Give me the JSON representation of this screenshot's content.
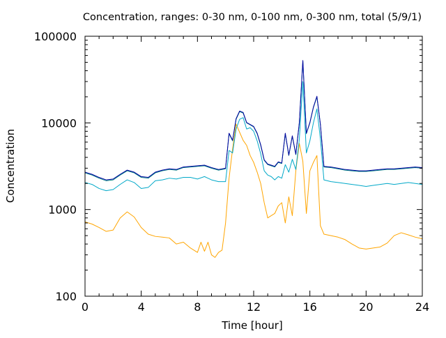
{
  "chart_data": {
    "type": "line",
    "title": "Concentration, ranges: 0-30 nm, 0-100 nm, 0-300 nm, total (5/9/1)",
    "xlabel": "Time [hour]",
    "ylabel": "Concentration",
    "xlim": [
      0,
      24
    ],
    "ylim": [
      100,
      100000
    ],
    "yscale": "log",
    "grid": false,
    "legend": "none",
    "x_ticks": [
      0,
      4,
      8,
      12,
      16,
      20,
      24
    ],
    "x_tick_labels": [
      "0",
      "4",
      "8",
      "12",
      "16",
      "20",
      "24"
    ],
    "y_ticks": [
      100,
      1000,
      10000,
      100000
    ],
    "y_tick_labels": [
      "100",
      "1000",
      "10000",
      "100000"
    ],
    "series": [
      {
        "color": "#ffa500",
        "x": [
          0,
          0.5,
          1,
          1.5,
          2,
          2.5,
          3,
          3.5,
          4,
          4.5,
          5,
          5.5,
          6,
          6.5,
          7,
          7.5,
          8,
          8.25,
          8.5,
          8.75,
          9,
          9.25,
          9.5,
          9.75,
          10,
          10.25,
          10.5,
          10.75,
          11,
          11.25,
          11.5,
          11.75,
          12,
          12.25,
          12.5,
          12.75,
          13,
          13.25,
          13.5,
          13.75,
          14,
          14.25,
          14.5,
          14.75,
          15,
          15.25,
          15.5,
          15.75,
          16,
          16.25,
          16.5,
          16.75,
          17,
          17.5,
          18,
          18.5,
          19,
          19.5,
          20,
          20.5,
          21,
          21.5,
          22,
          22.5,
          23,
          23.5,
          24
        ],
        "y": [
          720,
          680,
          620,
          560,
          580,
          800,
          940,
          820,
          620,
          520,
          490,
          480,
          470,
          400,
          420,
          360,
          320,
          420,
          330,
          420,
          300,
          280,
          320,
          340,
          700,
          2300,
          5000,
          9700,
          7800,
          6300,
          5500,
          4200,
          3500,
          2700,
          2000,
          1200,
          800,
          850,
          900,
          1100,
          1200,
          700,
          1400,
          850,
          2800,
          5800,
          3600,
          900,
          2800,
          3500,
          4200,
          650,
          520,
          500,
          480,
          450,
          400,
          360,
          350,
          360,
          370,
          410,
          500,
          540,
          510,
          480,
          460
        ]
      },
      {
        "color": "#00a8c8",
        "x": [
          0,
          0.5,
          1,
          1.5,
          2,
          2.5,
          3,
          3.5,
          4,
          4.5,
          5,
          5.5,
          6,
          6.5,
          7,
          7.5,
          8,
          8.5,
          9,
          9.5,
          10,
          10.25,
          10.5,
          10.75,
          11,
          11.25,
          11.5,
          11.75,
          12,
          12.25,
          12.5,
          12.75,
          13,
          13.25,
          13.5,
          13.75,
          14,
          14.25,
          14.5,
          14.75,
          15,
          15.25,
          15.5,
          15.75,
          16,
          16.25,
          16.5,
          16.75,
          17,
          17.5,
          18,
          18.5,
          19,
          19.5,
          20,
          20.5,
          21,
          21.5,
          22,
          22.5,
          23,
          23.5,
          24
        ],
        "y": [
          2050,
          1950,
          1750,
          1650,
          1700,
          1950,
          2200,
          2050,
          1750,
          1800,
          2150,
          2200,
          2300,
          2250,
          2350,
          2350,
          2250,
          2400,
          2200,
          2100,
          2100,
          4800,
          4500,
          8500,
          11000,
          11500,
          8500,
          8800,
          8000,
          6200,
          4400,
          2800,
          2500,
          2400,
          2200,
          2400,
          2300,
          3300,
          2700,
          3800,
          2900,
          6500,
          30000,
          4500,
          6200,
          10000,
          14500,
          6500,
          2200,
          2100,
          2050,
          2000,
          1950,
          1900,
          1850,
          1900,
          1950,
          2000,
          1950,
          2000,
          2050,
          2000,
          1950
        ]
      },
      {
        "color": "#008080",
        "x": [
          0,
          0.5,
          1,
          1.5,
          2,
          2.5,
          3,
          3.5,
          4,
          4.5,
          5,
          5.5,
          6,
          6.5,
          7,
          7.5,
          8,
          8.5,
          9,
          9.5,
          10,
          10.25,
          10.5,
          10.75,
          11,
          11.25,
          11.5,
          11.75,
          12,
          12.25,
          12.5,
          12.75,
          13,
          13.25,
          13.5,
          13.75,
          14,
          14.25,
          14.5,
          14.75,
          15,
          15.25,
          15.5,
          15.75,
          16,
          16.25,
          16.5,
          16.75,
          17,
          17.5,
          18,
          18.5,
          19,
          19.5,
          20,
          20.5,
          21,
          21.5,
          22,
          22.5,
          23,
          23.5,
          24
        ],
        "y": [
          2650,
          2500,
          2300,
          2150,
          2200,
          2500,
          2800,
          2650,
          2350,
          2300,
          2650,
          2800,
          2900,
          2850,
          3050,
          3100,
          3150,
          3200,
          3000,
          2850,
          2950,
          7500,
          6200,
          11000,
          13500,
          13000,
          10000,
          9500,
          9000,
          7500,
          5500,
          3700,
          3300,
          3200,
          3100,
          3500,
          3400,
          7500,
          4200,
          7000,
          4300,
          10000,
          52000,
          7500,
          10000,
          15000,
          20000,
          9500,
          3100,
          3050,
          2950,
          2850,
          2800,
          2750,
          2750,
          2800,
          2850,
          2900,
          2900,
          2950,
          3000,
          3050,
          3000
        ]
      },
      {
        "color": "#0000a0",
        "x": [
          0,
          0.5,
          1,
          1.5,
          2,
          2.5,
          3,
          3.5,
          4,
          4.5,
          5,
          5.5,
          6,
          6.5,
          7,
          7.5,
          8,
          8.5,
          9,
          9.5,
          10,
          10.25,
          10.5,
          10.75,
          11,
          11.25,
          11.5,
          11.75,
          12,
          12.25,
          12.5,
          12.75,
          13,
          13.25,
          13.5,
          13.75,
          14,
          14.25,
          14.5,
          14.75,
          15,
          15.25,
          15.5,
          15.75,
          16,
          16.25,
          16.5,
          16.75,
          17,
          17.5,
          18,
          18.5,
          19,
          19.5,
          20,
          20.5,
          21,
          21.5,
          22,
          22.5,
          23,
          23.5,
          24
        ],
        "y": [
          2700,
          2550,
          2350,
          2200,
          2250,
          2550,
          2850,
          2700,
          2400,
          2350,
          2700,
          2850,
          2950,
          2900,
          3100,
          3150,
          3200,
          3250,
          3050,
          2900,
          3000,
          7600,
          6300,
          11200,
          13700,
          13200,
          10100,
          9600,
          9100,
          7600,
          5600,
          3750,
          3350,
          3250,
          3150,
          3550,
          3450,
          7600,
          4250,
          7100,
          4350,
          10100,
          52500,
          7600,
          10100,
          15200,
          20300,
          9600,
          3150,
          3100,
          3000,
          2900,
          2850,
          2800,
          2800,
          2850,
          2900,
          2950,
          2950,
          3000,
          3050,
          3100,
          3050
        ]
      }
    ]
  }
}
